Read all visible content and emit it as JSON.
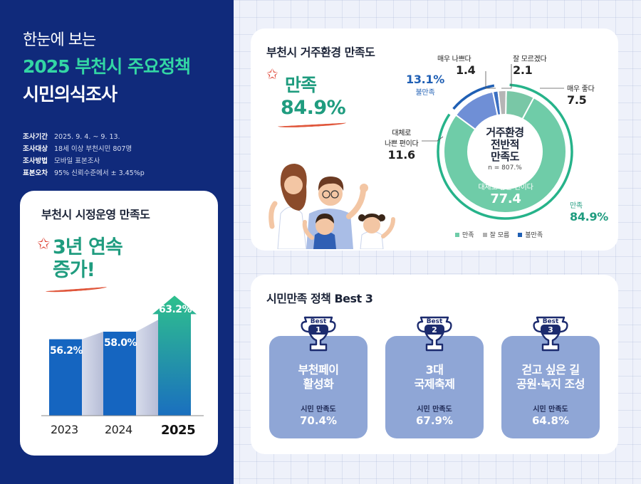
{
  "hero": {
    "line1": "한눈에 보는",
    "line2": "2025 부천시 주요정책",
    "line3": "시민의식조사"
  },
  "survey_info": [
    {
      "key": "조사기간",
      "value": "2025. 9. 4. ~ 9. 13."
    },
    {
      "key": "조사대상",
      "value": "18세 이상 부천시민 807명"
    },
    {
      "key": "조사방법",
      "value": "모바일 표본조사"
    },
    {
      "key": "표본오차",
      "value": "95% 신뢰수준에서 ± 3.45%p"
    }
  ],
  "admin_card": {
    "title": "부천시 시정운영 만족도",
    "headline_1": "3년 연속",
    "headline_2": "증가!"
  },
  "chart_data": [
    {
      "type": "bar",
      "title": "부천시 시정운영 만족도",
      "categories": [
        "2023",
        "2024",
        "2025"
      ],
      "values": [
        56.2,
        58.0,
        63.2
      ],
      "value_labels": [
        "56.2%",
        "58.0%",
        "63.2%"
      ],
      "colors": [
        "#1565c0",
        "#1565c0",
        "#26b38a"
      ]
    },
    {
      "type": "pie",
      "title": "부천시 거주환경 만족도",
      "center_label_1": "거주환경",
      "center_label_2": "전반적",
      "center_label_3": "만족도",
      "sample": "n = 807.%",
      "slices": [
        {
          "label": "매우 좋다",
          "value": 7.5,
          "group": "만족"
        },
        {
          "label": "대체로 좋은 편이다",
          "value": 77.4,
          "group": "만족"
        },
        {
          "label": "대체로 나쁜 편이다",
          "value": 11.6,
          "group": "불만족"
        },
        {
          "label": "매우 나쁘다",
          "value": 1.4,
          "group": "불만족"
        },
        {
          "label": "잘 모르겠다",
          "value": 2.1,
          "group": "잘 모름"
        }
      ],
      "groups": [
        {
          "name": "만족",
          "value_label": "84.9%",
          "color": "#6fcca8"
        },
        {
          "name": "잘 모름",
          "value_label": "",
          "color": "#b0b0b0"
        },
        {
          "name": "불만족",
          "value_label": "13.1%",
          "color": "#1f5fb4"
        }
      ]
    }
  ],
  "environment_card": {
    "title": "부천시 거주환경 만족도",
    "satisfied_label": "만족",
    "satisfied_value": "84.9%",
    "labels": {
      "very_bad": "매우 나쁘다",
      "very_bad_value": "1.4",
      "dont_know": "잘 모르겠다",
      "dont_know_value": "2.1",
      "very_good": "매우 좋다",
      "very_good_value": "7.5",
      "rather_bad_1": "대체로",
      "rather_bad_2": "나쁜 편이다",
      "rather_bad_value": "11.6",
      "rather_good": "대체로 좋은 편이다",
      "rather_good_value": "77.4",
      "dissatisfied_pct": "13.1%",
      "dissatisfied_label": "불만족",
      "satisfied_group_label": "만족",
      "satisfied_group_pct": "84.9%"
    },
    "legend": [
      "만족",
      "잘 모름",
      "불만족"
    ]
  },
  "best_card": {
    "title": "시민만족 정책 Best 3",
    "badge_word": "Best",
    "items": [
      {
        "rank": "1",
        "name_1": "부천페이",
        "name_2": "활성화",
        "sub": "시민 만족도",
        "value": "70.4%"
      },
      {
        "rank": "2",
        "name_1": "3대",
        "name_2": "국제축제",
        "sub": "시민 만족도",
        "value": "67.9%"
      },
      {
        "rank": "3",
        "name_1": "걷고 싶은 길",
        "name_2": "공원·녹지 조성",
        "sub": "시민 만족도",
        "value": "64.8%"
      }
    ]
  },
  "colors": {
    "navy": "#102a7b",
    "green": "#26b38a",
    "blue": "#1565c0",
    "policy_card": "#8fa6d6"
  }
}
